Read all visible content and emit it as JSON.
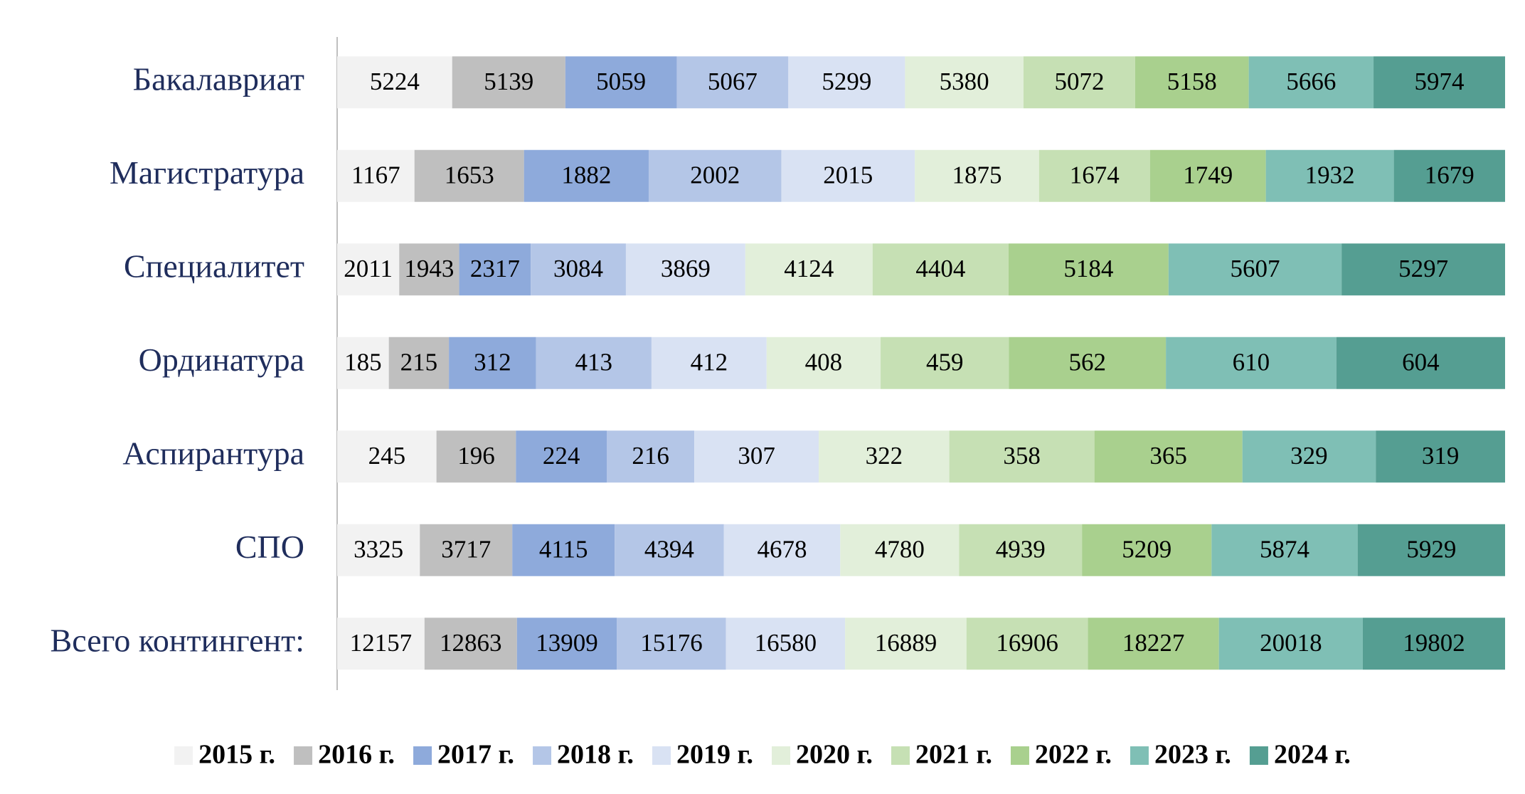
{
  "chart_data": {
    "type": "bar",
    "orientation": "horizontal",
    "stacking": "percent",
    "categories": [
      "Бакалавриат",
      "Магистратура",
      "Специалитет",
      "Ординатура",
      "Аспирантура",
      "СПО",
      "Всего контингент:"
    ],
    "series": [
      {
        "name": "2015 г.",
        "color": "#f2f2f2",
        "values": [
          5224,
          1167,
          2011,
          185,
          245,
          3325,
          12157
        ]
      },
      {
        "name": "2016 г.",
        "color": "#bfbfbf",
        "values": [
          5139,
          1653,
          1943,
          215,
          196,
          3717,
          12863
        ]
      },
      {
        "name": "2017 г.",
        "color": "#8eaadb",
        "values": [
          5059,
          1882,
          2317,
          312,
          224,
          4115,
          13909
        ]
      },
      {
        "name": "2018 г.",
        "color": "#b4c6e7",
        "values": [
          5067,
          2002,
          3084,
          413,
          216,
          4394,
          15176
        ]
      },
      {
        "name": "2019 г.",
        "color": "#d9e2f3",
        "values": [
          5299,
          2015,
          3869,
          412,
          307,
          4678,
          16580
        ]
      },
      {
        "name": "2020 г.",
        "color": "#e2efda",
        "values": [
          5380,
          1875,
          4124,
          408,
          322,
          4780,
          16889
        ]
      },
      {
        "name": "2021 г.",
        "color": "#c6e0b4",
        "values": [
          5072,
          1674,
          4404,
          459,
          358,
          4939,
          16906
        ]
      },
      {
        "name": "2022 г.",
        "color": "#a9d08e",
        "values": [
          5158,
          1749,
          5184,
          562,
          365,
          5209,
          18227
        ]
      },
      {
        "name": "2023 г.",
        "color": "#7fbfb5",
        "values": [
          5666,
          1932,
          5607,
          610,
          329,
          5874,
          20018
        ]
      },
      {
        "name": "2024 г.",
        "color": "#559e92",
        "values": [
          5974,
          1679,
          5297,
          604,
          319,
          5929,
          19802
        ]
      }
    ],
    "legend": "bottom"
  }
}
